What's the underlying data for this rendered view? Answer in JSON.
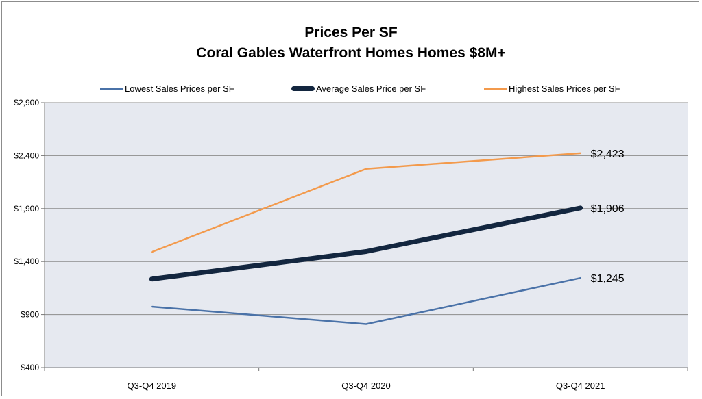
{
  "chart_data": {
    "type": "line",
    "title": "Prices Per SF",
    "subtitle": "Coral Gables Waterfront Homes Homes $8M+",
    "categories": [
      "Q3-Q4 2019",
      "Q3-Q4 2020",
      "Q3-Q4 2021"
    ],
    "ylim": [
      400,
      2900
    ],
    "yticks": [
      400,
      900,
      1400,
      1900,
      2400,
      2900
    ],
    "ytick_labels": [
      "$400",
      "$900",
      "$1,400",
      "$1,900",
      "$2,400",
      "$2,900"
    ],
    "grid": true,
    "legend_position": "top",
    "series": [
      {
        "name": "Lowest Sales Prices per SF",
        "values": [
          975,
          810,
          1245
        ],
        "color": "#4a72a8",
        "width": 2.5,
        "end_label": "$1,245"
      },
      {
        "name": "Average Sales Price per SF",
        "values": [
          1235,
          1495,
          1906
        ],
        "color": "#13263f",
        "width": 7,
        "end_label": "$1,906"
      },
      {
        "name": "Highest Sales Prices per SF",
        "values": [
          1490,
          2275,
          2423
        ],
        "color": "#f39a4c",
        "width": 2.5,
        "end_label": "$2,423"
      }
    ],
    "colors": {
      "plot_background": "#e6e9f0",
      "gridline": "#8c8c8c"
    }
  }
}
